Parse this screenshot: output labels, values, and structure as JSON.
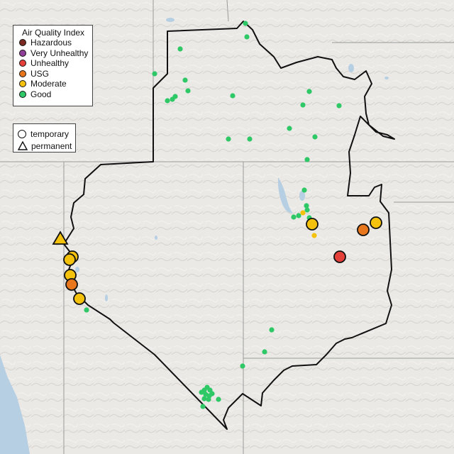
{
  "legend_aqi": {
    "title": "Air Quality Index",
    "items": [
      {
        "label": "Hazardous",
        "color": "#7a2a22"
      },
      {
        "label": "Very Unhealthy",
        "color": "#8f3f97"
      },
      {
        "label": "Unhealthy",
        "color": "#e5413a"
      },
      {
        "label": "USG",
        "color": "#e8761d"
      },
      {
        "label": "Moderate",
        "color": "#f4c20d"
      },
      {
        "label": "Good",
        "color": "#2ec866"
      }
    ]
  },
  "legend_monitor": {
    "items": [
      {
        "label": "temporary",
        "shape": "circle"
      },
      {
        "label": "permanent",
        "shape": "triangle"
      }
    ]
  },
  "map": {
    "background": "#e9e7e4",
    "boundary_color": "#000000",
    "water_color": "#b6cfe3"
  }
}
